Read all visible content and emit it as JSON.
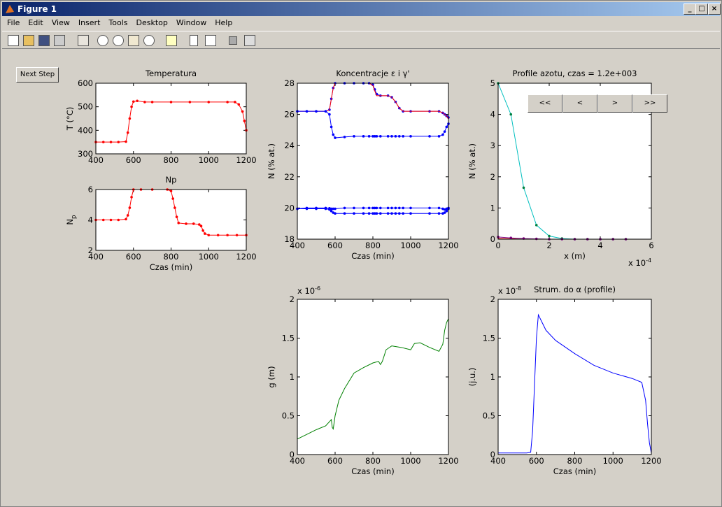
{
  "window": {
    "title": "Figure 1",
    "menu": [
      "File",
      "Edit",
      "View",
      "Insert",
      "Tools",
      "Desktop",
      "Window",
      "Help"
    ]
  },
  "next_step_button": "Next Step",
  "nav_buttons": [
    "<<",
    "<",
    ">",
    ">>"
  ],
  "chart_data": [
    {
      "type": "line",
      "title": "Temperatura",
      "ylabel": "T (°C)",
      "xlim": [
        400,
        1200
      ],
      "xticks": [
        400,
        600,
        800,
        1000,
        1200
      ],
      "ylim": [
        300,
        600
      ],
      "yticks": [
        300,
        400,
        500,
        600
      ],
      "x": [
        400,
        440,
        480,
        520,
        560,
        570,
        580,
        590,
        600,
        620,
        660,
        700,
        800,
        900,
        1000,
        1100,
        1140,
        1160,
        1180,
        1190,
        1200
      ],
      "series": [
        {
          "color": "#ff0000",
          "marker": true,
          "marker_color": "#ff0000",
          "values": [
            350,
            350,
            350,
            350,
            352,
            390,
            450,
            500,
            522,
            525,
            520,
            520,
            520,
            520,
            520,
            520,
            520,
            510,
            480,
            440,
            400
          ]
        }
      ]
    },
    {
      "type": "line",
      "title": "Np",
      "ylabel": "N",
      "ylabel_sub": "p",
      "xlabel": "Czas (min)",
      "xlim": [
        400,
        1200
      ],
      "xticks": [
        400,
        600,
        800,
        1000,
        1200
      ],
      "ylim": [
        2,
        6
      ],
      "yticks": [
        2,
        4,
        6
      ],
      "x": [
        400,
        440,
        480,
        520,
        560,
        570,
        580,
        590,
        600,
        640,
        700,
        780,
        800,
        810,
        820,
        830,
        840,
        880,
        920,
        950,
        960,
        970,
        980,
        1000,
        1050,
        1100,
        1150,
        1200
      ],
      "series": [
        {
          "color": "#ff0000",
          "marker": true,
          "marker_color": "#ff0000",
          "values": [
            4,
            4,
            4,
            4,
            4.05,
            4.3,
            4.8,
            5.5,
            6,
            6,
            6,
            6,
            5.9,
            5.4,
            4.8,
            4.2,
            3.8,
            3.75,
            3.75,
            3.7,
            3.6,
            3.3,
            3.1,
            3,
            3,
            3,
            3,
            3
          ]
        }
      ]
    },
    {
      "type": "line",
      "title": "Koncentracje ε i γ'",
      "ylabel": "N (% at.)",
      "xlabel": "Czas (min)",
      "xlim": [
        400,
        1200
      ],
      "xticks": [
        400,
        600,
        800,
        1000,
        1200
      ],
      "ylim": [
        18,
        28
      ],
      "yticks": [
        18,
        20,
        22,
        24,
        26,
        28
      ],
      "x": [
        400,
        450,
        500,
        550,
        570,
        580,
        590,
        600,
        650,
        700,
        750,
        780,
        800,
        810,
        820,
        840,
        880,
        900,
        920,
        940,
        960,
        1000,
        1100,
        1150,
        1170,
        1180,
        1190,
        1200
      ],
      "series": [
        {
          "color": "#0000ff",
          "marker": true,
          "marker_color": "#0000ff",
          "values": [
            26.2,
            26.2,
            26.2,
            26.2,
            26.3,
            27,
            27.7,
            28,
            28,
            28,
            28,
            28,
            27.9,
            27.6,
            27.3,
            27.2,
            27.2,
            27.1,
            26.8,
            26.4,
            26.2,
            26.2,
            26.2,
            26.2,
            26.1,
            26,
            25.9,
            25.8
          ]
        },
        {
          "color": "#ff0000",
          "marker": false,
          "values": [
            26.2,
            26.2,
            26.2,
            26.2,
            26.3,
            27,
            27.7,
            28,
            28,
            28,
            28,
            28,
            27.85,
            27.5,
            27.2,
            27.2,
            27.2,
            27.1,
            26.8,
            26.4,
            26.2,
            26.2,
            26.2,
            26.2,
            26.1,
            26,
            25.9,
            25.7
          ]
        },
        {
          "color": "#0000ff",
          "marker": true,
          "marker_color": "#0000ff",
          "values": [
            26.2,
            26.2,
            26.2,
            26.2,
            26,
            25.2,
            24.7,
            24.5,
            24.55,
            24.6,
            24.6,
            24.6,
            24.6,
            24.6,
            24.6,
            24.6,
            24.6,
            24.6,
            24.6,
            24.6,
            24.6,
            24.6,
            24.6,
            24.6,
            24.7,
            24.9,
            25.2,
            25.4
          ]
        },
        {
          "color": "#0000ff",
          "marker": true,
          "marker_color": "#0000ff",
          "values": [
            19.95,
            20,
            20,
            20,
            19.98,
            19.95,
            19.95,
            19.95,
            20,
            20,
            20,
            20,
            20,
            20,
            20,
            20,
            20,
            20,
            20,
            20,
            20,
            20,
            20,
            20,
            19.95,
            19.9,
            19.95,
            20
          ]
        },
        {
          "color": "#0000ff",
          "marker": true,
          "marker_color": "#0000ff",
          "values": [
            19.95,
            19.95,
            19.95,
            19.95,
            19.9,
            19.8,
            19.7,
            19.65,
            19.65,
            19.65,
            19.65,
            19.65,
            19.65,
            19.65,
            19.65,
            19.65,
            19.65,
            19.65,
            19.65,
            19.65,
            19.65,
            19.65,
            19.65,
            19.65,
            19.65,
            19.7,
            19.8,
            19.95
          ]
        }
      ]
    },
    {
      "type": "line",
      "title": "Profile azotu, czas = 1.2e+003",
      "ylabel": "N (% at.)",
      "xlabel": "x (m)",
      "multiplier": "x 10",
      "multiplier_exp": "-4",
      "multiplier_pos": "bottom-right",
      "xlim": [
        0,
        6
      ],
      "xticks": [
        0,
        2,
        4,
        6
      ],
      "ylim": [
        0,
        5
      ],
      "yticks": [
        0,
        1,
        2,
        3,
        4,
        5
      ],
      "x": [
        0,
        0.5,
        1,
        1.5,
        2,
        2.5,
        3,
        3.5,
        4,
        4.5,
        5
      ],
      "series": [
        {
          "color": "#00bfbf",
          "marker": true,
          "marker_color": "#008040",
          "values": [
            5,
            4,
            1.65,
            0.45,
            0.1,
            0.02,
            0,
            0,
            0,
            0,
            0
          ]
        },
        {
          "color": "#ff0000",
          "marker": false,
          "values": [
            0.02,
            0.01,
            0,
            0,
            0,
            0,
            0,
            0,
            0,
            0,
            0
          ]
        },
        {
          "color": "#800080",
          "marker": true,
          "marker_color": "#800080",
          "values": [
            0.07,
            0.04,
            0.02,
            0.01,
            0,
            0,
            0,
            0,
            0,
            0,
            0
          ]
        }
      ]
    },
    {
      "type": "line",
      "ylabel": "g (m)",
      "xlabel": "Czas (min)",
      "multiplier": "x 10",
      "multiplier_exp": "-6",
      "multiplier_pos": "top-left",
      "xlim": [
        400,
        1200
      ],
      "xticks": [
        400,
        600,
        800,
        1000,
        1200
      ],
      "ylim": [
        0,
        2
      ],
      "yticks": [
        0,
        0.5,
        1,
        1.5,
        2
      ],
      "x": [
        400,
        450,
        500,
        550,
        580,
        585,
        590,
        600,
        620,
        650,
        700,
        750,
        800,
        830,
        840,
        850,
        870,
        900,
        950,
        1000,
        1020,
        1050,
        1100,
        1150,
        1170,
        1180,
        1190,
        1200
      ],
      "series": [
        {
          "color": "#008000",
          "marker": false,
          "values": [
            0.2,
            0.26,
            0.32,
            0.37,
            0.45,
            0.35,
            0.33,
            0.5,
            0.7,
            0.85,
            1.05,
            1.12,
            1.18,
            1.2,
            1.16,
            1.2,
            1.35,
            1.4,
            1.38,
            1.35,
            1.43,
            1.44,
            1.38,
            1.33,
            1.42,
            1.6,
            1.7,
            1.75
          ]
        }
      ]
    },
    {
      "type": "line",
      "title": "Strum. do α (profile)",
      "ylabel": "(j.u.)",
      "xlabel": "Czas (min)",
      "multiplier": "x 10",
      "multiplier_exp": "-8",
      "multiplier_pos": "top-left",
      "xlim": [
        400,
        1200
      ],
      "xticks": [
        400,
        600,
        800,
        1000,
        1200
      ],
      "ylim": [
        0,
        2
      ],
      "yticks": [
        0,
        0.5,
        1,
        1.5,
        2
      ],
      "x": [
        400,
        450,
        500,
        550,
        570,
        580,
        600,
        610,
        620,
        650,
        700,
        800,
        900,
        1000,
        1100,
        1150,
        1170,
        1180,
        1190,
        1200
      ],
      "series": [
        {
          "color": "#0000ff",
          "marker": false,
          "values": [
            0.02,
            0.02,
            0.02,
            0.02,
            0.03,
            0.3,
            1.5,
            1.8,
            1.75,
            1.6,
            1.47,
            1.3,
            1.15,
            1.05,
            0.98,
            0.93,
            0.7,
            0.4,
            0.15,
            0.02
          ]
        }
      ]
    }
  ]
}
